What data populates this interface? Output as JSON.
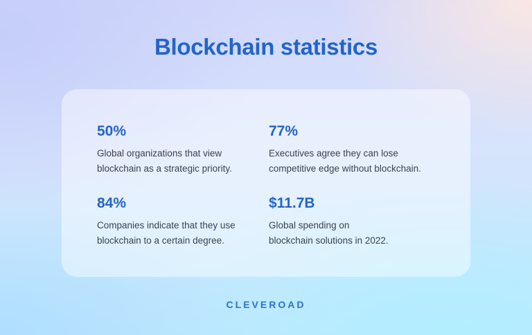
{
  "title": "Blockchain statistics",
  "stats": [
    {
      "value": "50%",
      "line1": "Global organizations that view",
      "line2": "blockchain as a strategic priority."
    },
    {
      "value": "77%",
      "line1": "Executives agree they can lose",
      "line2": "competitive edge without blockchain."
    },
    {
      "value": "84%",
      "line1": "Companies indicate that they use",
      "line2": "blockchain to a certain degree."
    },
    {
      "value": "$11.7B",
      "line1": "Global spending on",
      "line2": "blockchain solutions in 2022."
    }
  ],
  "brand": "CLEVEROAD",
  "colors": {
    "accent": "#2364c9",
    "text": "#3a4252"
  }
}
